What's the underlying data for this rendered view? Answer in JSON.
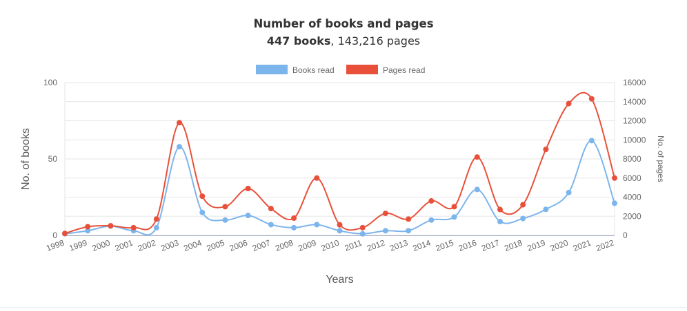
{
  "header": {
    "title": "Number of books and pages",
    "books_total": "447 books",
    "pages_total": "143,216 pages"
  },
  "chart_data": {
    "type": "line",
    "x": [
      "1998",
      "1999",
      "2000",
      "2001",
      "2002",
      "2003",
      "2004",
      "2005",
      "2006",
      "2007",
      "2008",
      "2009",
      "2010",
      "2011",
      "2012",
      "2013",
      "2014",
      "2015",
      "2016",
      "2017",
      "2018",
      "2019",
      "2020",
      "2021",
      "2022"
    ],
    "xlabel": "Years",
    "ylabel_left": "No. of books",
    "ylabel_right": "No. of pages",
    "ylim_left": [
      0,
      100
    ],
    "ylim_right": [
      0,
      16000
    ],
    "yticks_left": [
      0,
      50,
      100
    ],
    "yticks_right": [
      0,
      2000,
      4000,
      6000,
      8000,
      10000,
      12000,
      14000,
      16000
    ],
    "grid": true,
    "legend": "top-center",
    "series": [
      {
        "name": "Books read",
        "axis": "left",
        "color": "#7cb5ec",
        "values": [
          1,
          3,
          6,
          3,
          5,
          58,
          15,
          10,
          13,
          7,
          5,
          7,
          3,
          1,
          3,
          3,
          10,
          12,
          30,
          9,
          11,
          17,
          28,
          62,
          21
        ]
      },
      {
        "name": "Pages read",
        "axis": "right",
        "color": "#e8503a",
        "values": [
          200,
          900,
          1000,
          800,
          1700,
          11800,
          4100,
          3000,
          4900,
          2800,
          1800,
          6000,
          1100,
          800,
          2300,
          1700,
          3600,
          3000,
          8200,
          2700,
          3200,
          9000,
          13800,
          14300,
          6000
        ]
      }
    ]
  }
}
